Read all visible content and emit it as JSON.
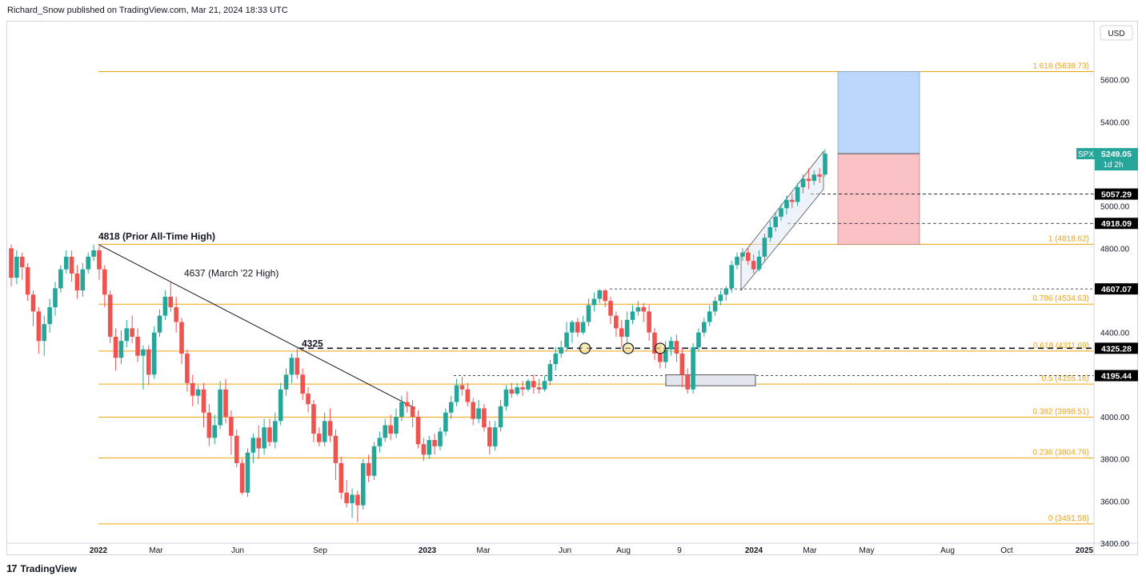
{
  "header": {
    "publish_text": "Richard_Snow published on TradingView.com, Mar 21, 2024 18:33 UTC"
  },
  "footer": {
    "brand": "TradingView",
    "logo_glyph": "17"
  },
  "currency_label": "USD",
  "colors": {
    "up": "#26a69a",
    "down": "#ef5350",
    "fib": "#f0a30a",
    "trend": "#131722",
    "target_zone": "#bbd7fb",
    "stop_zone": "#fbc2c6",
    "badge": "#000000"
  },
  "chart_data": {
    "type": "candlestick",
    "symbol": "SPX",
    "ylim": [
      3400,
      5800
    ],
    "y_ticks": [
      "3400.00",
      "3600.00",
      "3800.00",
      "4000.00",
      "4200.00",
      "4400.00",
      "4600.00",
      "4800.00",
      "5000.00",
      "5200.00",
      "5400.00",
      "5600.00"
    ],
    "x_ticks": [
      "2022",
      "Mar",
      "Jun",
      "Sep",
      "2023",
      "Mar",
      "Jun",
      "Aug",
      "9",
      "2024",
      "Mar",
      "May",
      "Aug",
      "Oct",
      "2025"
    ],
    "fib_levels": [
      {
        "label": "1.618 (5638.73)",
        "value": 5638.73
      },
      {
        "label": "1 (4818.62)",
        "value": 4818.62
      },
      {
        "label": "0.786 (4534.63)",
        "value": 4534.63
      },
      {
        "label": "0.618 (4311.69)",
        "value": 4311.69
      },
      {
        "label": "0.5 (4155.16)",
        "value": 4155.16
      },
      {
        "label": "0.382 (3998.51)",
        "value": 3998.51
      },
      {
        "label": "0.236 (3804.76)",
        "value": 3804.76
      },
      {
        "label": "0 (3491.58)",
        "value": 3491.58
      }
    ],
    "price_badges": [
      {
        "label": "5057.29",
        "value": 5057.29
      },
      {
        "label": "4918.09",
        "value": 4918.09
      },
      {
        "label": "4607.07",
        "value": 4607.07
      },
      {
        "label": "4325.28",
        "value": 4325.28
      },
      {
        "label": "4195.44",
        "value": 4195.44
      }
    ],
    "last_price": {
      "symbol": "SPX",
      "value": "5249.05",
      "countdown": "1d 2h",
      "price": 5249.05
    },
    "annotations": [
      "4818 (Prior All-Time High)",
      "4637 (March '22 High)",
      "4325"
    ],
    "candles": [
      [
        4800,
        4660,
        4818,
        4620
      ],
      [
        4660,
        4760,
        4790,
        4630
      ],
      [
        4760,
        4710,
        4780,
        4650
      ],
      [
        4710,
        4580,
        4730,
        4550
      ],
      [
        4580,
        4500,
        4600,
        4430
      ],
      [
        4500,
        4360,
        4520,
        4300
      ],
      [
        4360,
        4440,
        4480,
        4290
      ],
      [
        4440,
        4520,
        4560,
        4400
      ],
      [
        4520,
        4610,
        4640,
        4480
      ],
      [
        4610,
        4700,
        4720,
        4590
      ],
      [
        4700,
        4760,
        4790,
        4680
      ],
      [
        4760,
        4680,
        4790,
        4640
      ],
      [
        4680,
        4600,
        4720,
        4560
      ],
      [
        4600,
        4700,
        4730,
        4570
      ],
      [
        4700,
        4760,
        4780,
        4680
      ],
      [
        4760,
        4790,
        4818,
        4740
      ],
      [
        4790,
        4700,
        4810,
        4650
      ],
      [
        4700,
        4580,
        4720,
        4520
      ],
      [
        4580,
        4380,
        4600,
        4350
      ],
      [
        4380,
        4280,
        4420,
        4220
      ],
      [
        4280,
        4360,
        4410,
        4250
      ],
      [
        4360,
        4420,
        4460,
        4330
      ],
      [
        4420,
        4380,
        4480,
        4350
      ],
      [
        4380,
        4290,
        4420,
        4260
      ],
      [
        4290,
        4320,
        4340,
        4130
      ],
      [
        4320,
        4200,
        4340,
        4150
      ],
      [
        4200,
        4400,
        4430,
        4180
      ],
      [
        4400,
        4480,
        4510,
        4380
      ],
      [
        4480,
        4570,
        4600,
        4460
      ],
      [
        4570,
        4520,
        4637,
        4500
      ],
      [
        4520,
        4450,
        4570,
        4400
      ],
      [
        4450,
        4300,
        4470,
        4250
      ],
      [
        4300,
        4160,
        4320,
        4120
      ],
      [
        4160,
        4100,
        4200,
        4050
      ],
      [
        4100,
        4130,
        4150,
        4060
      ],
      [
        4130,
        4020,
        4160,
        3950
      ],
      [
        4020,
        3900,
        4060,
        3860
      ],
      [
        3900,
        3960,
        4010,
        3870
      ],
      [
        3960,
        4130,
        4170,
        3940
      ],
      [
        4130,
        4000,
        4180,
        3970
      ],
      [
        4000,
        3910,
        4030,
        3820
      ],
      [
        3910,
        3780,
        3940,
        3760
      ],
      [
        3780,
        3640,
        3800,
        3630
      ],
      [
        3640,
        3830,
        3850,
        3620
      ],
      [
        3830,
        3900,
        3920,
        3780
      ],
      [
        3900,
        3850,
        3960,
        3800
      ],
      [
        3850,
        3950,
        3990,
        3820
      ],
      [
        3950,
        3880,
        3990,
        3860
      ],
      [
        3880,
        3980,
        4020,
        3850
      ],
      [
        3980,
        4130,
        4160,
        3960
      ],
      [
        4130,
        4200,
        4230,
        4100
      ],
      [
        4200,
        4280,
        4300,
        4160
      ],
      [
        4280,
        4200,
        4325,
        4180
      ],
      [
        4200,
        4110,
        4230,
        4080
      ],
      [
        4110,
        4060,
        4140,
        4020
      ],
      [
        4060,
        3920,
        4080,
        3880
      ],
      [
        3920,
        3880,
        3950,
        3860
      ],
      [
        3880,
        3980,
        4020,
        3860
      ],
      [
        3980,
        3910,
        4040,
        3880
      ],
      [
        3910,
        3780,
        3940,
        3700
      ],
      [
        3780,
        3640,
        3810,
        3610
      ],
      [
        3640,
        3590,
        3700,
        3570
      ],
      [
        3590,
        3630,
        3660,
        3520
      ],
      [
        3630,
        3580,
        3650,
        3500
      ],
      [
        3580,
        3780,
        3800,
        3560
      ],
      [
        3780,
        3720,
        3820,
        3690
      ],
      [
        3720,
        3860,
        3880,
        3700
      ],
      [
        3860,
        3900,
        3930,
        3830
      ],
      [
        3900,
        3960,
        3990,
        3880
      ],
      [
        3960,
        3920,
        4010,
        3890
      ],
      [
        3920,
        4000,
        4040,
        3900
      ],
      [
        4000,
        4070,
        4100,
        3980
      ],
      [
        4070,
        4050,
        4120,
        4020
      ],
      [
        4050,
        4000,
        4080,
        3950
      ],
      [
        4000,
        3870,
        4030,
        3850
      ],
      [
        3870,
        3820,
        3900,
        3790
      ],
      [
        3820,
        3890,
        3910,
        3800
      ],
      [
        3890,
        3860,
        3920,
        3820
      ],
      [
        3860,
        3930,
        3950,
        3840
      ],
      [
        3930,
        4020,
        4040,
        3910
      ],
      [
        4020,
        4070,
        4100,
        3990
      ],
      [
        4070,
        4150,
        4180,
        4050
      ],
      [
        4150,
        4130,
        4190,
        4100
      ],
      [
        4130,
        4070,
        4160,
        4050
      ],
      [
        4070,
        3990,
        4090,
        3960
      ],
      [
        3990,
        4040,
        4080,
        3970
      ],
      [
        4040,
        3950,
        4060,
        3930
      ],
      [
        3950,
        3860,
        3980,
        3820
      ],
      [
        3860,
        3950,
        3980,
        3840
      ],
      [
        3950,
        4050,
        4080,
        3930
      ],
      [
        4050,
        4130,
        4150,
        4030
      ],
      [
        4130,
        4110,
        4160,
        4090
      ],
      [
        4110,
        4140,
        4160,
        4100
      ],
      [
        4140,
        4130,
        4170,
        4100
      ],
      [
        4130,
        4170,
        4180,
        4120
      ],
      [
        4170,
        4140,
        4200,
        4110
      ],
      [
        4140,
        4130,
        4180,
        4110
      ],
      [
        4130,
        4170,
        4195,
        4120
      ],
      [
        4170,
        4250,
        4270,
        4150
      ],
      [
        4250,
        4300,
        4330,
        4220
      ],
      [
        4300,
        4330,
        4360,
        4280
      ],
      [
        4330,
        4400,
        4450,
        4310
      ],
      [
        4400,
        4450,
        4460,
        4350
      ],
      [
        4450,
        4400,
        4470,
        4380
      ],
      [
        4400,
        4450,
        4480,
        4390
      ],
      [
        4450,
        4530,
        4560,
        4430
      ],
      [
        4530,
        4560,
        4590,
        4500
      ],
      [
        4560,
        4600,
        4607,
        4540
      ],
      [
        4600,
        4550,
        4607,
        4520
      ],
      [
        4550,
        4480,
        4570,
        4440
      ],
      [
        4480,
        4420,
        4500,
        4380
      ],
      [
        4420,
        4380,
        4460,
        4330
      ],
      [
        4380,
        4460,
        4500,
        4350
      ],
      [
        4460,
        4500,
        4530,
        4440
      ],
      [
        4500,
        4520,
        4550,
        4480
      ],
      [
        4520,
        4500,
        4540,
        4450
      ],
      [
        4500,
        4400,
        4530,
        4360
      ],
      [
        4400,
        4300,
        4420,
        4270
      ],
      [
        4300,
        4260,
        4340,
        4230
      ],
      [
        4260,
        4320,
        4360,
        4230
      ],
      [
        4320,
        4360,
        4380,
        4290
      ],
      [
        4360,
        4300,
        4390,
        4260
      ],
      [
        4300,
        4200,
        4330,
        4140
      ],
      [
        4200,
        4130,
        4230,
        4110
      ],
      [
        4130,
        4330,
        4350,
        4110
      ],
      [
        4330,
        4400,
        4420,
        4310
      ],
      [
        4400,
        4450,
        4470,
        4380
      ],
      [
        4450,
        4500,
        4530,
        4430
      ],
      [
        4500,
        4550,
        4570,
        4480
      ],
      [
        4550,
        4580,
        4600,
        4530
      ],
      [
        4580,
        4610,
        4620,
        4550
      ],
      [
        4610,
        4720,
        4740,
        4590
      ],
      [
        4720,
        4760,
        4780,
        4700
      ],
      [
        4760,
        4780,
        4800,
        4740
      ],
      [
        4780,
        4740,
        4800,
        4720
      ],
      [
        4740,
        4700,
        4770,
        4680
      ],
      [
        4700,
        4760,
        4790,
        4690
      ],
      [
        4760,
        4850,
        4870,
        4740
      ],
      [
        4850,
        4900,
        4930,
        4830
      ],
      [
        4900,
        4950,
        4970,
        4880
      ],
      [
        4950,
        4990,
        5010,
        4930
      ],
      [
        4990,
        5030,
        5050,
        4960
      ],
      [
        5030,
        5020,
        5060,
        4990
      ],
      [
        5020,
        5090,
        5110,
        5000
      ],
      [
        5090,
        5130,
        5150,
        5060
      ],
      [
        5130,
        5120,
        5180,
        5080
      ],
      [
        5120,
        5150,
        5170,
        5100
      ],
      [
        5150,
        5140,
        5180,
        5110
      ],
      [
        5150,
        5249,
        5270,
        5140
      ]
    ]
  }
}
